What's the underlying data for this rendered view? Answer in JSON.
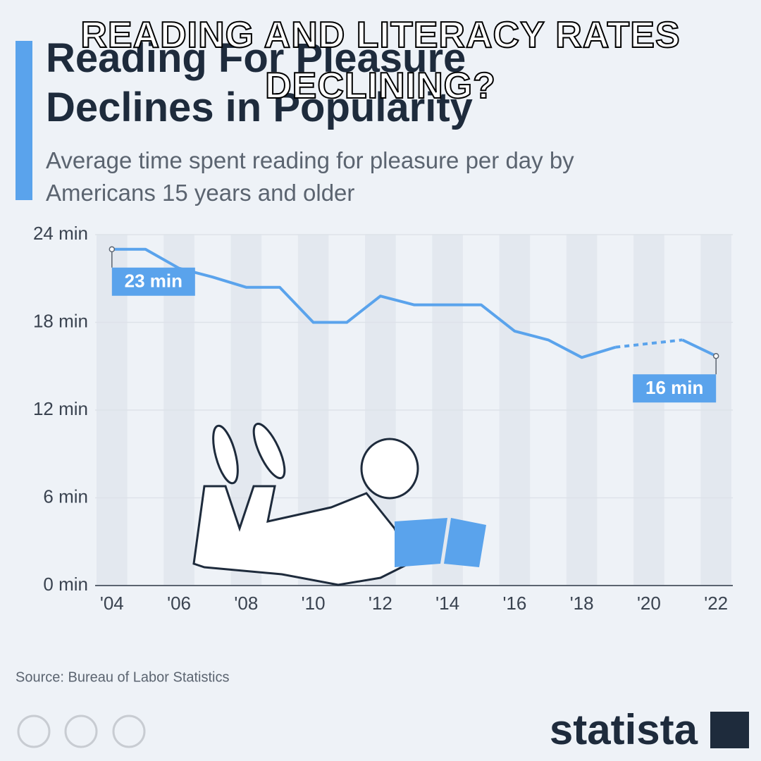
{
  "overlay_caption": "READING AND LITERACY RATES DECLINING?",
  "chart_data": {
    "type": "line",
    "title": "Reading For Pleasure Declines in Popularity",
    "subtitle": "Average time spent reading for pleasure per day by Americans 15 years and older",
    "categories": [
      "'04",
      null,
      "'06",
      null,
      "'08",
      null,
      "'10",
      null,
      "'12",
      null,
      "'14",
      null,
      "'16",
      null,
      "'18",
      null,
      "'20",
      null,
      "'22"
    ],
    "series": [
      {
        "name": "Average time spent reading",
        "color": "#5aa3ec",
        "values": [
          23,
          23,
          21.7,
          21.1,
          20.4,
          20.4,
          18,
          18,
          19.8,
          19.2,
          19.2,
          19.2,
          17.4,
          16.8,
          15.6,
          16.3,
          null,
          16.8,
          15.7
        ],
        "value_labels": [
          "23 min",
          null,
          null,
          null,
          null,
          null,
          null,
          null,
          null,
          null,
          null,
          null,
          null,
          null,
          null,
          null,
          null,
          null,
          "16 min"
        ]
      }
    ],
    "ylim": [
      0,
      24
    ],
    "yticks": [
      {
        "value": 0,
        "label": "0 min"
      },
      {
        "value": 6,
        "label": "6 min"
      },
      {
        "value": 12,
        "label": "12 min"
      },
      {
        "value": 18,
        "label": "18 min"
      },
      {
        "value": 24,
        "label": "24 min"
      }
    ],
    "grid": true,
    "source": "Source: Bureau of Labor Statistics",
    "brand": "statista"
  }
}
